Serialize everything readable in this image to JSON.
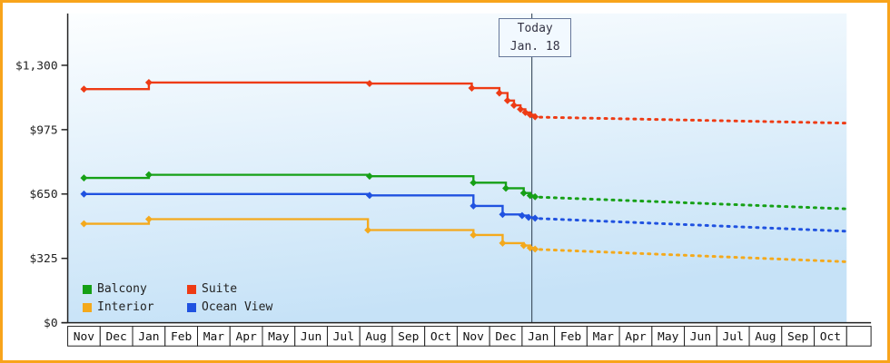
{
  "frame": {
    "border_color": "#f8a41b",
    "background": "#ffffff"
  },
  "chart_data": {
    "type": "line",
    "title": "",
    "x_axis": {
      "months": [
        "Nov",
        "Dec",
        "Jan",
        "Feb",
        "Mar",
        "Apr",
        "May",
        "Jun",
        "Jul",
        "Aug",
        "Sep",
        "Oct",
        "Nov",
        "Dec",
        "Jan",
        "Feb",
        "Mar",
        "Apr",
        "May",
        "Jun",
        "Jul",
        "Aug",
        "Sep",
        "Oct"
      ]
    },
    "y_axis": {
      "ticks": [
        {
          "label": "$0",
          "value": 0
        },
        {
          "label": "$325",
          "value": 325
        },
        {
          "label": "$650",
          "value": 650
        },
        {
          "label": "$975",
          "value": 975
        },
        {
          "label": "$1,300",
          "value": 1300
        }
      ],
      "ylim": [
        0,
        1550
      ]
    },
    "today": {
      "line1": "Today",
      "line2": "Jan. 18",
      "x_month": 14.3
    },
    "legend": {
      "rows": [
        [
          "Balcony",
          "Suite"
        ],
        [
          "Interior",
          "Ocean View"
        ]
      ]
    },
    "series": [
      {
        "name": "Suite",
        "color": "#ee3b14",
        "solid": [
          [
            0.5,
            1180
          ],
          [
            2.5,
            1213
          ],
          [
            9.3,
            1208
          ],
          [
            12.45,
            1185
          ],
          [
            13.3,
            1160
          ],
          [
            13.55,
            1122
          ],
          [
            13.75,
            1098
          ],
          [
            13.95,
            1078
          ],
          [
            14.1,
            1062
          ],
          [
            14.25,
            1050
          ],
          [
            14.4,
            1040
          ]
        ],
        "dotted": [
          [
            14.55,
            1038
          ],
          [
            24,
            1008
          ]
        ]
      },
      {
        "name": "Balcony",
        "color": "#16a016",
        "solid": [
          [
            0.5,
            731
          ],
          [
            2.5,
            747
          ],
          [
            9.3,
            740
          ],
          [
            12.5,
            707
          ],
          [
            13.5,
            679
          ],
          [
            14.05,
            655
          ],
          [
            14.25,
            642
          ],
          [
            14.4,
            636
          ]
        ],
        "dotted": [
          [
            14.55,
            634
          ],
          [
            24,
            575
          ]
        ]
      },
      {
        "name": "Ocean View",
        "color": "#2052e0",
        "solid": [
          [
            0.5,
            650
          ],
          [
            9.3,
            643
          ],
          [
            12.5,
            590
          ],
          [
            13.4,
            547
          ],
          [
            14.0,
            541
          ],
          [
            14.2,
            532
          ],
          [
            14.4,
            528
          ]
        ],
        "dotted": [
          [
            14.55,
            526
          ],
          [
            24,
            462
          ]
        ]
      },
      {
        "name": "Interior",
        "color": "#f4a91c",
        "solid": [
          [
            0.5,
            500
          ],
          [
            2.5,
            523
          ],
          [
            9.25,
            468
          ],
          [
            12.5,
            443
          ],
          [
            13.4,
            402
          ],
          [
            14.05,
            390
          ],
          [
            14.25,
            378
          ],
          [
            14.4,
            372
          ]
        ],
        "dotted": [
          [
            14.55,
            370
          ],
          [
            24,
            308
          ]
        ]
      }
    ]
  }
}
